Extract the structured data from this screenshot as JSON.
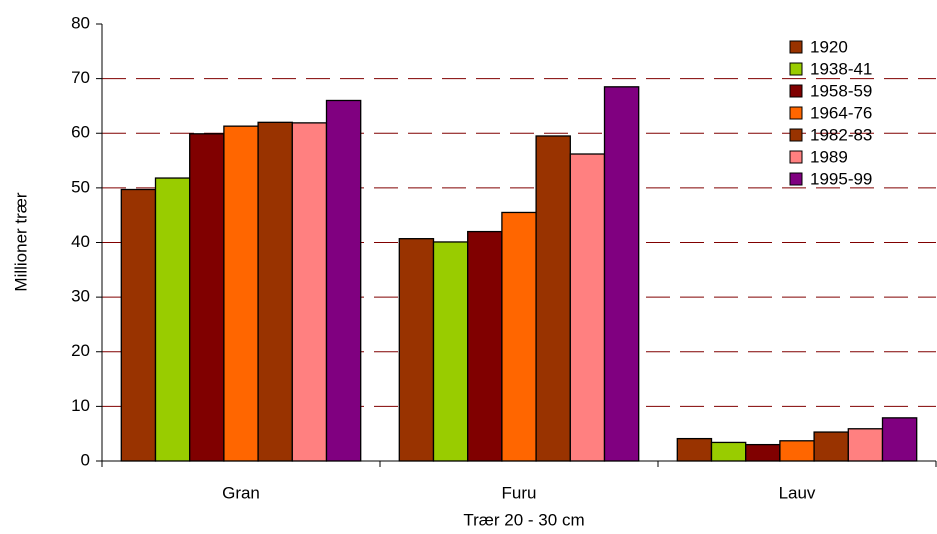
{
  "chart_data": {
    "type": "bar",
    "x_label": "Trær 20 - 30 cm",
    "y_label": "Millioner trær",
    "categories": [
      "Gran",
      "Furu",
      "Lauv"
    ],
    "series": [
      {
        "name": "1920",
        "color": "#993300",
        "values": [
          49.7,
          40.7,
          4.1
        ]
      },
      {
        "name": "1938-41",
        "color": "#99cc00",
        "values": [
          51.8,
          40.1,
          3.4
        ]
      },
      {
        "name": "1958-59",
        "color": "#800000",
        "values": [
          59.9,
          42.0,
          3.0
        ]
      },
      {
        "name": "1964-76",
        "color": "#ff6600",
        "values": [
          61.3,
          45.5,
          3.7
        ]
      },
      {
        "name": "1982-83",
        "color": "#993300",
        "values": [
          62.0,
          59.5,
          5.3
        ]
      },
      {
        "name": "1989",
        "color": "#ff8080",
        "values": [
          61.9,
          56.2,
          5.9
        ]
      },
      {
        "name": "1995-99",
        "color": "#800080",
        "values": [
          66.0,
          68.5,
          7.9
        ]
      }
    ],
    "ylim": [
      0,
      80
    ],
    "yticks": [
      0,
      10,
      20,
      30,
      40,
      50,
      60,
      70,
      80
    ],
    "grid": true,
    "legend": "top-right"
  }
}
